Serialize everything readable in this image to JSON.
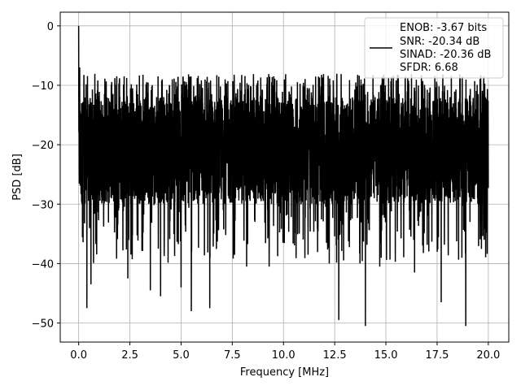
{
  "chart_data": {
    "type": "line",
    "title": "",
    "xlabel": "Frequency [MHz]",
    "ylabel": "PSD [dB]",
    "xlim": [
      -0.9,
      21.0
    ],
    "ylim": [
      -53.2,
      2.3
    ],
    "xticks": [
      0.0,
      2.5,
      5.0,
      7.5,
      10.0,
      12.5,
      15.0,
      17.5,
      20.0
    ],
    "xtick_labels": [
      "0.0",
      "2.5",
      "5.0",
      "7.5",
      "10.0",
      "12.5",
      "15.0",
      "17.5",
      "20.0"
    ],
    "yticks": [
      0,
      -10,
      -20,
      -30,
      -40,
      -50
    ],
    "ytick_labels": [
      "0",
      "−10",
      "−20",
      "−30",
      "−40",
      "−50"
    ],
    "grid": true,
    "legend_position": "top-right",
    "legend_lines": [
      "ENOB: -3.67 bits",
      "SNR: -20.34 dB",
      "SINAD: -20.36 dB",
      "SFDR: 6.68"
    ],
    "series_color": "#000000",
    "series": [
      {
        "x_range": [
          0.0,
          20.0
        ],
        "noise_floor_mean": -20,
        "noise_band_upper": -12,
        "noise_band_lower": -30,
        "peak": {
          "x": 0.0,
          "y": 0
        },
        "notable_points": [
          {
            "x": 0.05,
            "y": -7
          },
          {
            "x": 0.1,
            "y": -22
          },
          {
            "x": 0.4,
            "y": -47.5
          },
          {
            "x": 0.6,
            "y": -43.5
          },
          {
            "x": 2.4,
            "y": -42.5
          },
          {
            "x": 3.5,
            "y": -44.5
          },
          {
            "x": 4.0,
            "y": -45.5
          },
          {
            "x": 5.0,
            "y": -44
          },
          {
            "x": 5.5,
            "y": -48
          },
          {
            "x": 6.4,
            "y": -47.5
          },
          {
            "x": 8.2,
            "y": -40.5
          },
          {
            "x": 9.3,
            "y": -40.5
          },
          {
            "x": 11.2,
            "y": -38.5
          },
          {
            "x": 12.1,
            "y": -36.5
          },
          {
            "x": 12.7,
            "y": -49.5
          },
          {
            "x": 14.0,
            "y": -50.5
          },
          {
            "x": 14.7,
            "y": -40.5
          },
          {
            "x": 16.4,
            "y": -41.5
          },
          {
            "x": 17.7,
            "y": -46.5
          },
          {
            "x": 18.9,
            "y": -50.5
          },
          {
            "x": 19.8,
            "y": -36
          }
        ]
      }
    ]
  }
}
